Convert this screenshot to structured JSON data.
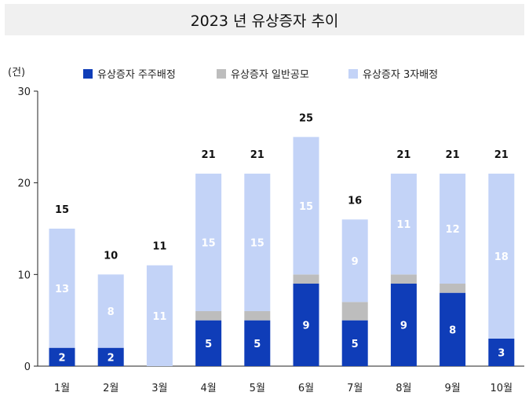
{
  "chart_data": {
    "type": "bar",
    "stacked": true,
    "title": "2023 년 유상증자 추이",
    "unit_label": "(건)",
    "categories": [
      "1월",
      "2월",
      "3월",
      "4월",
      "5월",
      "6월",
      "7월",
      "8월",
      "9월",
      "10월"
    ],
    "series": [
      {
        "name": "유상증자 주주배정",
        "color": "#0f3db8",
        "values": [
          2,
          2,
          0,
          5,
          5,
          9,
          5,
          9,
          8,
          3
        ]
      },
      {
        "name": "유상증자 일반공모",
        "color": "#bdbdbd",
        "values": [
          0,
          0,
          0,
          1,
          1,
          1,
          2,
          1,
          1,
          0
        ]
      },
      {
        "name": "유상증자 3자배정",
        "color": "#c3d3f7",
        "values": [
          13,
          8,
          11,
          15,
          15,
          15,
          9,
          11,
          12,
          18
        ]
      }
    ],
    "totals": [
      15,
      10,
      11,
      21,
      21,
      25,
      16,
      21,
      21,
      21
    ],
    "ylim": [
      0,
      30
    ],
    "yticks": [
      0,
      10,
      20,
      30
    ],
    "legend_position": "top",
    "grid": false
  }
}
